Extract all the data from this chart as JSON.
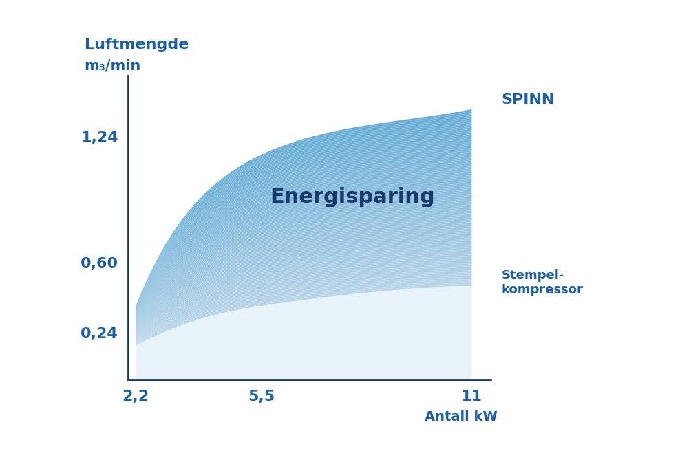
{
  "title": "",
  "ylabel_line1": "Luftmengde",
  "ylabel_line2": "m₃/min",
  "xlabel": "Antall kW",
  "x_ticks": [
    2.2,
    5.5,
    11
  ],
  "x_tick_labels": [
    "2,2",
    "5,5",
    "11"
  ],
  "y_ticks": [
    0.24,
    0.6,
    1.24
  ],
  "y_tick_labels": [
    "0,24",
    "0,60",
    "1,24"
  ],
  "spinn_label": "SPINN",
  "stempel_label": "Stempel-\nkompressor",
  "energisparing_label": "Energisparing",
  "axis_color": "#1a3a6b",
  "label_color": "#1a5fa8",
  "energisparing_color": "#1a3a6b",
  "fill_color_light": "#b8d4e8",
  "fill_color_dark": "#6aaed6",
  "spinn_x": [
    2.2,
    3.0,
    4.0,
    5.5,
    7.0,
    9.0,
    11.0
  ],
  "spinn_y": [
    0.38,
    0.7,
    0.95,
    1.15,
    1.25,
    1.32,
    1.38
  ],
  "stempel_x": [
    2.2,
    3.0,
    4.0,
    5.5,
    7.0,
    9.0,
    11.0
  ],
  "stempel_y": [
    0.18,
    0.25,
    0.32,
    0.38,
    0.42,
    0.46,
    0.48
  ],
  "xlim": [
    2.0,
    11.5
  ],
  "ylim": [
    0.0,
    1.55
  ],
  "background_color": "#ffffff",
  "figsize": [
    9.88,
    6.71
  ],
  "dpi": 100
}
